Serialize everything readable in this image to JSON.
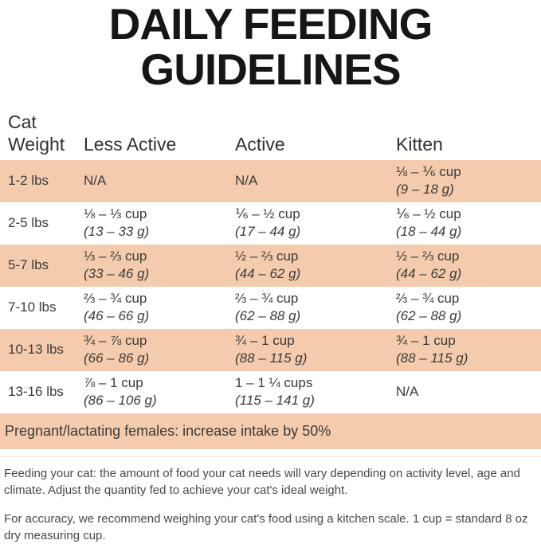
{
  "title": {
    "line1": "DAILY FEEDING",
    "line2": "GUIDELINES"
  },
  "colors": {
    "row_highlight": "#F4CCAD",
    "title_text": "#161616",
    "body_text": "#3A3A3A"
  },
  "table": {
    "headers": {
      "col1_line1": "Cat",
      "col1_line2": "Weight",
      "col2": "Less Active",
      "col3": "Active",
      "col4": "Kitten"
    },
    "rows": [
      {
        "weight": "1-2 lbs",
        "less_active": {
          "cups": "N/A",
          "grams": ""
        },
        "active": {
          "cups": "N/A",
          "grams": ""
        },
        "kitten": {
          "cups": "⅛ – ⅙ cup",
          "grams": "(9 – 18 g)"
        }
      },
      {
        "weight": "2-5 lbs",
        "less_active": {
          "cups": "⅛ – ⅓ cup",
          "grams": "(13 – 33 g)"
        },
        "active": {
          "cups": "⅙ – ½ cup",
          "grams": "(17 – 44 g)"
        },
        "kitten": {
          "cups": "⅙ – ½ cup",
          "grams": "(18 – 44 g)"
        }
      },
      {
        "weight": "5-7 lbs",
        "less_active": {
          "cups": "⅓ – ⅔ cup",
          "grams": "(33 – 46 g)"
        },
        "active": {
          "cups": "½ – ⅔ cup",
          "grams": "(44 – 62 g)"
        },
        "kitten": {
          "cups": "½ – ⅔ cup",
          "grams": "(44 – 62 g)"
        }
      },
      {
        "weight": "7-10 lbs",
        "less_active": {
          "cups": "⅔ – ¾ cup",
          "grams": "(46 – 66 g)"
        },
        "active": {
          "cups": "⅔ – ¾ cup",
          "grams": "(62 – 88 g)"
        },
        "kitten": {
          "cups": "⅔ – ¾ cup",
          "grams": "(62 – 88 g)"
        }
      },
      {
        "weight": "10-13 lbs",
        "less_active": {
          "cups": "¾ – ⅞ cup",
          "grams": "(66 – 86 g)"
        },
        "active": {
          "cups": "¾ – 1 cup",
          "grams": "(88 – 115 g)"
        },
        "kitten": {
          "cups": "¾ – 1 cup",
          "grams": "(88 – 115 g)"
        }
      },
      {
        "weight": "13-16 lbs",
        "less_active": {
          "cups": "⅞ – 1 cup",
          "grams": "(86 – 106 g)"
        },
        "active": {
          "cups": "1 – 1 ¼ cups",
          "grams": "(115 – 141 g)"
        },
        "kitten": {
          "cups": "N/A",
          "grams": ""
        }
      }
    ],
    "note": "Pregnant/lactating females: increase intake by 50%"
  },
  "footer": {
    "paragraph1": "Feeding your cat: the amount of food your cat needs will vary depending on activity level, age and climate. Adjust the quantity fed to achieve your cat's ideal weight.",
    "paragraph2": "For accuracy, we recommend weighing your cat's food using a kitchen scale. 1 cup = standard 8 oz dry measuring cup."
  }
}
